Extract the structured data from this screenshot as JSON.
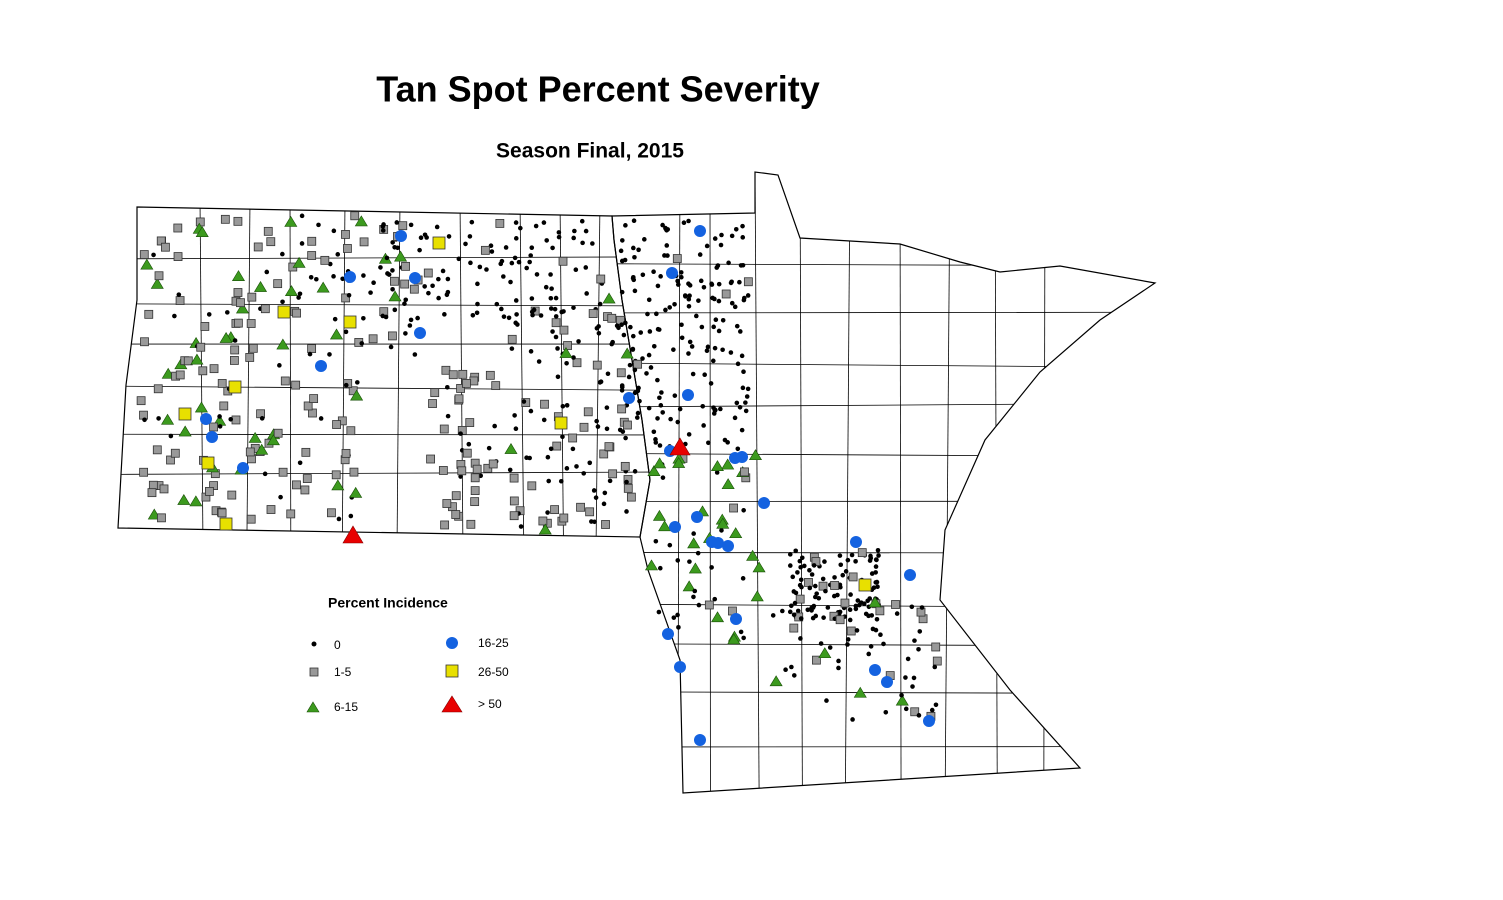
{
  "title": "Tan Spot Percent Severity",
  "subtitle": "Season Final, 2015",
  "legend": {
    "title": "Percent Incidence",
    "items": [
      {
        "label": "0"
      },
      {
        "label": "1-5"
      },
      {
        "label": "6-15"
      },
      {
        "label": "16-25"
      },
      {
        "label": "26-50"
      },
      {
        "label": "> 50"
      }
    ]
  }
}
